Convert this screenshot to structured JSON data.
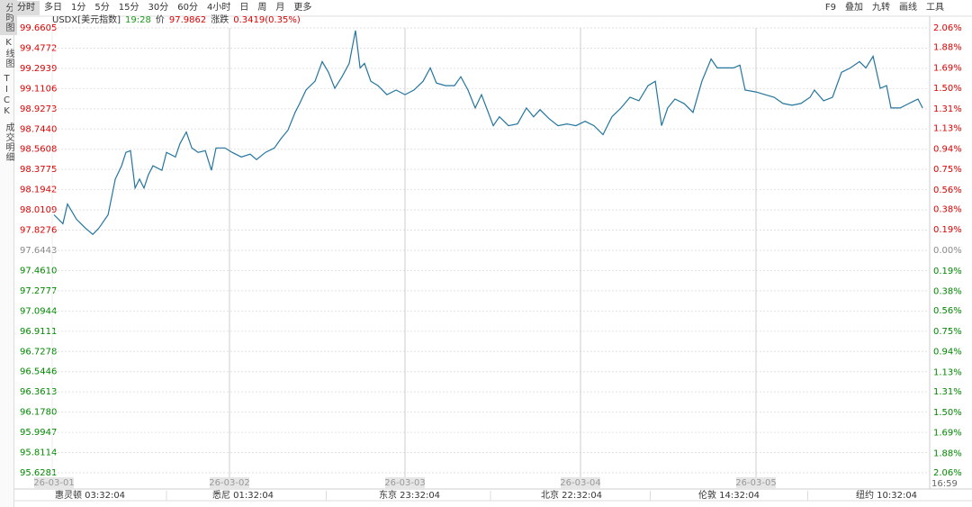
{
  "ui": {
    "tabs": [
      "分时",
      "多日",
      "1分",
      "5分",
      "15分",
      "30分",
      "60分",
      "4小时",
      "日",
      "周",
      "月",
      "更多"
    ],
    "tools": [
      "F9",
      "叠加",
      "九转",
      "画线",
      "工具"
    ],
    "sidebar": [
      "分时图",
      "K线图",
      "TICK",
      "成交明细"
    ],
    "symbol": "USDX[美元指数]",
    "time": "19:28",
    "price_label": "价",
    "price": "97.9862",
    "change_label": "涨跌",
    "change": "0.3419(0.35%)",
    "zones": [
      "惠灵顿 03:32:04",
      "悉尼 01:32:04",
      "东京 23:32:04",
      "北京 22:32:04",
      "伦敦 14:32:04",
      "纽约 10:32:04"
    ],
    "clock": "16:59"
  },
  "chart_data": {
    "type": "line",
    "color": "#23759e",
    "grid": true,
    "xlim": [
      0,
      5
    ],
    "xticks": [
      {
        "value": 0,
        "label": "26-03-01"
      },
      {
        "value": 1,
        "label": "26-03-02"
      },
      {
        "value": 2,
        "label": "26-03-03"
      },
      {
        "value": 3,
        "label": "26-03-04"
      },
      {
        "value": 4,
        "label": "26-03-05"
      }
    ],
    "ylim": [
      95.6281,
      99.6605
    ],
    "yticks": [
      99.6605,
      99.4772,
      99.2939,
      99.1106,
      98.9273,
      {
        "value": 98.744,
        "label": "98.7440"
      },
      98.5608,
      98.3775,
      98.1942,
      98.0109,
      97.8276,
      97.6443,
      {
        "value": 97.461,
        "label": "97.4610"
      },
      97.2777,
      97.0944,
      96.9111,
      96.7278,
      96.5446,
      96.3613,
      {
        "value": 96.178,
        "label": "96.1780"
      },
      95.9947,
      95.8114,
      95.6281
    ],
    "y2lim": [
      -2.06,
      2.06
    ],
    "y2ticks": [
      {
        "value": 2.06,
        "label": "2.06%"
      },
      {
        "value": 1.88,
        "label": "1.88%"
      },
      {
        "value": 1.69,
        "label": "1.69%"
      },
      {
        "value": 1.5,
        "label": "1.50%"
      },
      {
        "value": 1.31,
        "label": "1.31%"
      },
      {
        "value": 1.13,
        "label": "1.13%"
      },
      {
        "value": 0.94,
        "label": "0.94%"
      },
      {
        "value": 0.75,
        "label": "0.75%"
      },
      {
        "value": 0.56,
        "label": "0.56%"
      },
      {
        "value": 0.38,
        "label": "0.38%"
      },
      {
        "value": 0.19,
        "label": "0.19%"
      },
      {
        "value": 0,
        "label": "0.00%"
      },
      {
        "value": -0.19,
        "label": "0.19%"
      },
      {
        "value": -0.38,
        "label": "0.38%"
      },
      {
        "value": -0.56,
        "label": "0.56%"
      },
      {
        "value": -0.75,
        "label": "0.75%"
      },
      {
        "value": -0.94,
        "label": "0.94%"
      },
      {
        "value": -1.13,
        "label": "1.13%"
      },
      {
        "value": -1.31,
        "label": "1.31%"
      },
      {
        "value": -1.5,
        "label": "1.50%"
      },
      {
        "value": -1.69,
        "label": "1.69%"
      },
      {
        "value": -1.88,
        "label": "1.88%"
      },
      {
        "value": -2.06,
        "label": "2.06%"
      }
    ],
    "x": [
      0,
      0.051,
      0.077,
      0.128,
      0.179,
      0.221,
      0.256,
      0.308,
      0.349,
      0.385,
      0.41,
      0.436,
      0.462,
      0.487,
      0.513,
      0.538,
      0.564,
      0.615,
      0.641,
      0.692,
      0.718,
      0.754,
      0.785,
      0.821,
      0.862,
      0.897,
      0.923,
      0.974,
      1.015,
      1.067,
      1.118,
      1.154,
      1.205,
      1.256,
      1.292,
      1.333,
      1.374,
      1.4,
      1.436,
      1.487,
      1.528,
      1.564,
      1.6,
      1.641,
      1.682,
      1.718,
      1.744,
      1.769,
      1.805,
      1.846,
      1.897,
      1.949,
      2,
      2.051,
      2.103,
      2.144,
      2.179,
      2.231,
      2.282,
      2.318,
      2.359,
      2.4,
      2.436,
      2.503,
      2.538,
      2.59,
      2.641,
      2.692,
      2.733,
      2.769,
      2.821,
      2.872,
      2.923,
      2.974,
      3.026,
      3.077,
      3.128,
      3.179,
      3.231,
      3.282,
      3.333,
      3.385,
      3.426,
      3.462,
      3.497,
      3.538,
      3.59,
      3.641,
      3.692,
      3.744,
      3.779,
      3.821,
      3.872,
      3.908,
      3.938,
      4,
      4.051,
      4.103,
      4.154,
      4.205,
      4.256,
      4.308,
      4.333,
      4.385,
      4.436,
      4.487,
      4.538,
      4.59,
      4.626,
      4.667,
      4.708,
      4.744,
      4.769,
      4.821,
      4.872,
      4.923,
      4.949
    ],
    "values": [
      97.967,
      97.886,
      98.064,
      97.926,
      97.846,
      97.789,
      97.846,
      97.967,
      98.29,
      98.411,
      98.532,
      98.548,
      98.209,
      98.29,
      98.209,
      98.33,
      98.411,
      98.37,
      98.532,
      98.491,
      98.612,
      98.717,
      98.572,
      98.532,
      98.548,
      98.37,
      98.572,
      98.572,
      98.532,
      98.491,
      98.516,
      98.467,
      98.532,
      98.572,
      98.653,
      98.733,
      98.895,
      98.976,
      99.097,
      99.177,
      99.355,
      99.258,
      99.113,
      99.218,
      99.339,
      99.637,
      99.298,
      99.339,
      99.177,
      99.137,
      99.056,
      99.097,
      99.056,
      99.097,
      99.177,
      99.298,
      99.161,
      99.137,
      99.137,
      99.218,
      99.097,
      98.935,
      99.056,
      98.774,
      98.855,
      98.774,
      98.79,
      98.935,
      98.855,
      98.919,
      98.838,
      98.774,
      98.79,
      98.774,
      98.814,
      98.774,
      98.693,
      98.855,
      98.935,
      99.032,
      99,
      99.137,
      99.177,
      98.774,
      98.935,
      99.016,
      98.976,
      98.895,
      99.177,
      99.379,
      99.298,
      99.298,
      99.298,
      99.323,
      99.097,
      99.08,
      99.056,
      99.032,
      98.976,
      98.959,
      98.976,
      99.032,
      99.097,
      99,
      99.032,
      99.258,
      99.298,
      99.355,
      99.298,
      99.403,
      99.113,
      99.137,
      98.935,
      98.935,
      98.976,
      99.016,
      98.935
    ]
  }
}
